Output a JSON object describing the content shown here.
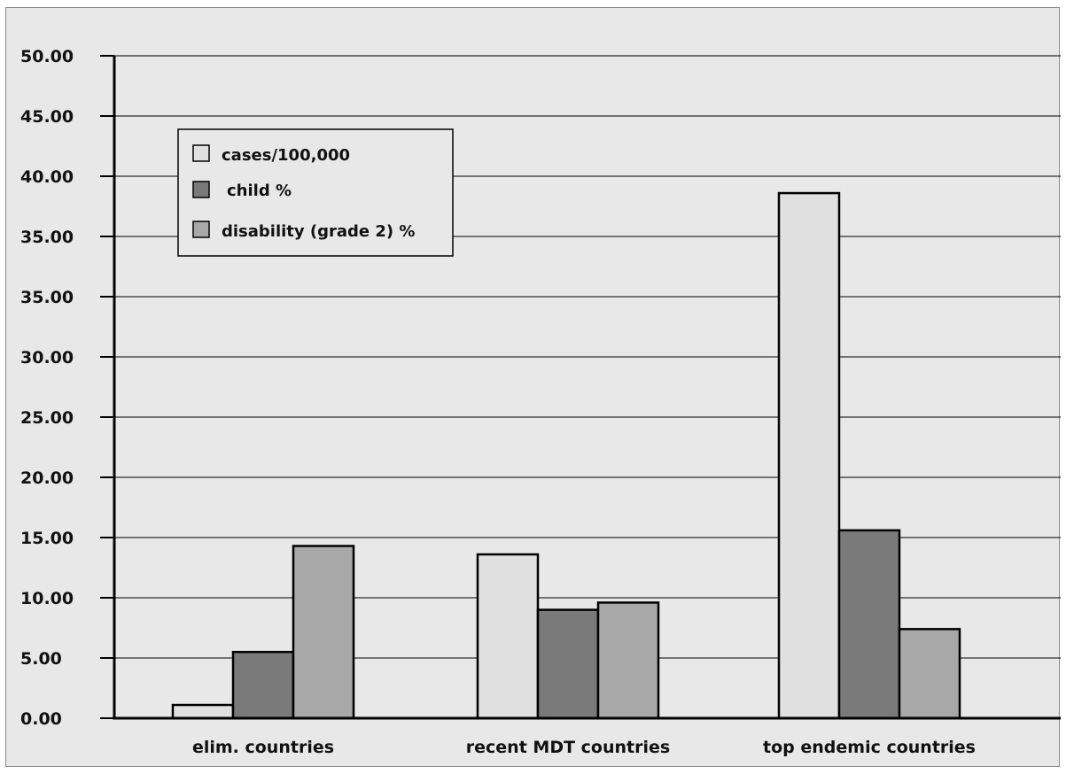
{
  "chart_data": {
    "type": "bar",
    "categories": [
      "elim. countries",
      "recent MDT countries",
      "top endemic countries"
    ],
    "series": [
      {
        "name": "cases/100,000",
        "values": [
          1.1,
          13.6,
          39.3
        ],
        "color": "#e0e0e0"
      },
      {
        "name": "child %",
        "values": [
          5.5,
          9.0,
          15.6
        ],
        "color": "#7a7a7a"
      },
      {
        "name": "disability (grade 2) %",
        "values": [
          14.3,
          9.6,
          7.4
        ],
        "color": "#a8a8a8"
      }
    ],
    "yticks": [
      "0.00",
      "5.00",
      "10.00",
      "15.00",
      "20.00",
      "25.00",
      "30.00",
      "35.00",
      "35.00",
      "40.00",
      "45.00",
      "50.00"
    ],
    "grid": true,
    "legend_position": "top-left",
    "background": "#e8e8e8"
  }
}
